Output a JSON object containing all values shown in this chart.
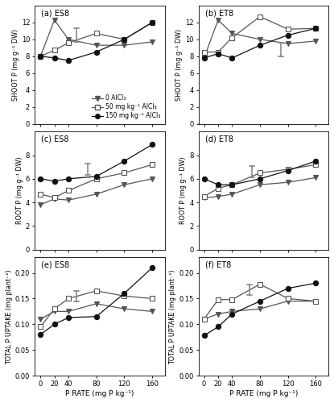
{
  "x": [
    0,
    20,
    40,
    80,
    120,
    160
  ],
  "panels": [
    {
      "label": "(a) ES8",
      "row": 0,
      "col": 0,
      "ylabel": "SHOOT P (mg g⁻¹ DW)",
      "ylim": [
        0,
        14
      ],
      "yticks": [
        0,
        2,
        4,
        6,
        8,
        10,
        12
      ],
      "series": [
        {
          "y": [
            8.0,
            12.3,
            10.0,
            9.3,
            9.3,
            9.7
          ],
          "marker": "v",
          "mfc": "#555555",
          "mec": "#555555",
          "lc": "#555555"
        },
        {
          "y": [
            8.0,
            8.7,
            9.6,
            10.7,
            10.0,
            12.0
          ],
          "marker": "s",
          "mfc": "white",
          "mec": "#555555",
          "lc": "#555555"
        },
        {
          "y": [
            8.0,
            7.8,
            7.5,
            8.5,
            10.0,
            12.0
          ],
          "marker": "o",
          "mfc": "#111111",
          "mec": "#111111",
          "lc": "#111111"
        }
      ],
      "lsd_x": 52,
      "lsd_y": 10.5,
      "lsd_half": 0.85,
      "legend": true
    },
    {
      "label": "(b) ET8",
      "row": 0,
      "col": 1,
      "ylabel": "SHOOT P (mg g⁻¹ DW)",
      "ylim": [
        0,
        14
      ],
      "yticks": [
        0,
        2,
        4,
        6,
        8,
        10,
        12
      ],
      "series": [
        {
          "y": [
            7.8,
            12.3,
            10.7,
            10.0,
            9.5,
            9.8
          ],
          "marker": "v",
          "mfc": "#555555",
          "mec": "#555555",
          "lc": "#555555"
        },
        {
          "y": [
            8.5,
            8.5,
            10.2,
            12.7,
            11.2,
            11.3
          ],
          "marker": "s",
          "mfc": "white",
          "mec": "#555555",
          "lc": "#555555"
        },
        {
          "y": [
            7.8,
            8.3,
            7.8,
            9.3,
            10.5,
            11.3
          ],
          "marker": "o",
          "mfc": "#111111",
          "mec": "#111111",
          "lc": "#111111"
        }
      ],
      "lsd_x": 110,
      "lsd_y": 8.8,
      "lsd_half": 0.8,
      "legend": false
    },
    {
      "label": "(c) ES8",
      "row": 1,
      "col": 0,
      "ylabel": "ROOT P (mg g⁻¹ DW)",
      "ylim": [
        0,
        10
      ],
      "yticks": [
        0,
        2,
        4,
        6,
        8
      ],
      "series": [
        {
          "y": [
            3.8,
            4.3,
            4.2,
            4.7,
            5.5,
            6.0
          ],
          "marker": "v",
          "mfc": "#555555",
          "mec": "#555555",
          "lc": "#555555"
        },
        {
          "y": [
            4.7,
            4.4,
            5.0,
            6.0,
            6.5,
            7.2
          ],
          "marker": "s",
          "mfc": "white",
          "mec": "#555555",
          "lc": "#555555"
        },
        {
          "y": [
            6.0,
            5.8,
            6.0,
            6.2,
            7.5,
            8.9
          ],
          "marker": "o",
          "mfc": "#111111",
          "mec": "#111111",
          "lc": "#111111"
        }
      ],
      "lsd_x": 68,
      "lsd_y": 6.8,
      "lsd_half": 0.5,
      "legend": false
    },
    {
      "label": "(d) ET8",
      "row": 1,
      "col": 1,
      "ylabel": "ROOT P (mg g⁻¹ DW)",
      "ylim": [
        0,
        10
      ],
      "yticks": [
        0,
        2,
        4,
        6,
        8
      ],
      "series": [
        {
          "y": [
            4.4,
            4.5,
            4.7,
            5.5,
            5.7,
            6.1
          ],
          "marker": "v",
          "mfc": "#555555",
          "mec": "#555555",
          "lc": "#555555"
        },
        {
          "y": [
            4.5,
            5.2,
            5.5,
            6.5,
            6.8,
            7.2
          ],
          "marker": "s",
          "mfc": "white",
          "mec": "#555555",
          "lc": "#555555"
        },
        {
          "y": [
            6.0,
            5.5,
            5.5,
            6.0,
            6.7,
            7.5
          ],
          "marker": "o",
          "mfc": "#111111",
          "mec": "#111111",
          "lc": "#111111"
        }
      ],
      "lsd_x": 68,
      "lsd_y": 6.6,
      "lsd_half": 0.5,
      "legend": false
    },
    {
      "label": "(e) ES8",
      "row": 2,
      "col": 0,
      "ylabel": "TOTAL P UPTAKE (mg plant⁻¹)",
      "ylim": [
        0.0,
        0.23
      ],
      "yticks": [
        0.0,
        0.05,
        0.1,
        0.15,
        0.2
      ],
      "series": [
        {
          "y": [
            0.11,
            0.125,
            0.125,
            0.14,
            0.13,
            0.125
          ],
          "marker": "v",
          "mfc": "#555555",
          "mec": "#555555",
          "lc": "#555555"
        },
        {
          "y": [
            0.095,
            0.13,
            0.15,
            0.165,
            0.155,
            0.15
          ],
          "marker": "s",
          "mfc": "white",
          "mec": "#555555",
          "lc": "#555555"
        },
        {
          "y": [
            0.08,
            0.1,
            0.113,
            0.115,
            0.16,
            0.21
          ],
          "marker": "o",
          "mfc": "#111111",
          "mec": "#111111",
          "lc": "#111111"
        }
      ],
      "lsd_x": 52,
      "lsd_y": 0.155,
      "lsd_half": 0.01,
      "legend": false
    },
    {
      "label": "(f) ET8",
      "row": 2,
      "col": 1,
      "ylabel": "TOTAL P UPTAKE (mg plant⁻¹)",
      "ylim": [
        0.0,
        0.23
      ],
      "yticks": [
        0.0,
        0.05,
        0.1,
        0.15,
        0.2
      ],
      "series": [
        {
          "y": [
            0.11,
            0.12,
            0.125,
            0.13,
            0.145,
            0.145
          ],
          "marker": "v",
          "mfc": "#555555",
          "mec": "#555555",
          "lc": "#555555"
        },
        {
          "y": [
            0.11,
            0.148,
            0.148,
            0.178,
            0.15,
            0.145
          ],
          "marker": "s",
          "mfc": "white",
          "mec": "#555555",
          "lc": "#555555"
        },
        {
          "y": [
            0.078,
            0.095,
            0.12,
            0.145,
            0.17,
            0.18
          ],
          "marker": "o",
          "mfc": "#111111",
          "mec": "#111111",
          "lc": "#111111"
        }
      ],
      "lsd_x": 65,
      "lsd_y": 0.167,
      "lsd_half": 0.01,
      "legend": false
    }
  ],
  "legend_labels": [
    "0 AlCl₃",
    "50 mg kg⁻¹ AlCl₃",
    "150 mg kg⁻¹ AlCl₃"
  ],
  "xlabel": "P RATE (mg P kg⁻¹)",
  "xticks": [
    0,
    20,
    40,
    80,
    120,
    160
  ],
  "xlim": [
    -8,
    178
  ],
  "linewidth": 0.9,
  "markersize": 4.5,
  "markeredgewidth": 0.8
}
